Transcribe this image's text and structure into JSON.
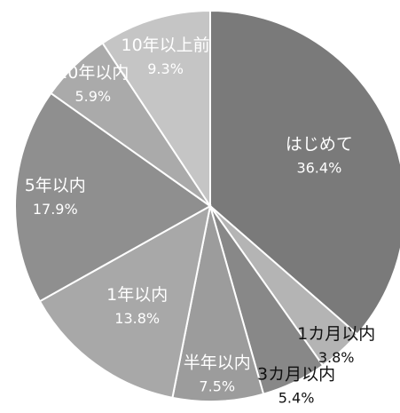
{
  "chart_data": {
    "type": "pie",
    "title": "",
    "slices": [
      {
        "label": "はじめて",
        "value": 36.4,
        "value_text": "36.4%",
        "color": "#7a7a7a"
      },
      {
        "label": "1カ月以内",
        "value": 3.8,
        "value_text": "3.8%",
        "color": "#b4b4b4"
      },
      {
        "label": "3カ月以内",
        "value": 5.4,
        "value_text": "5.4%",
        "color": "#888888"
      },
      {
        "label": "半年以内",
        "value": 7.5,
        "value_text": "7.5%",
        "color": "#9c9c9c"
      },
      {
        "label": "1年以内",
        "value": 13.8,
        "value_text": "13.8%",
        "color": "#a8a8a8"
      },
      {
        "label": "5年以内",
        "value": 17.9,
        "value_text": "17.9%",
        "color": "#8f8f8f"
      },
      {
        "label": "10年以内",
        "value": 5.9,
        "value_text": "5.9%",
        "color": "#aaaaaa"
      },
      {
        "label": "10年以上前",
        "value": 9.3,
        "value_text": "9.3%",
        "color": "#c5c5c5"
      }
    ]
  }
}
